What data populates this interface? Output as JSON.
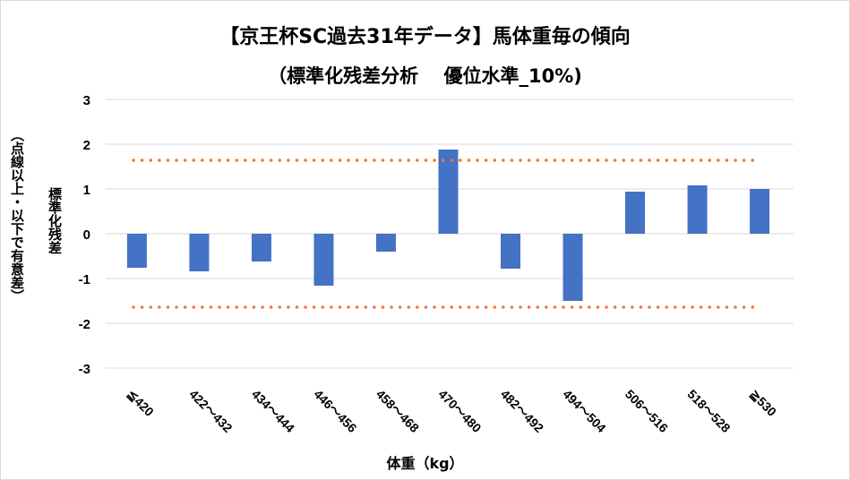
{
  "chart_data": {
    "type": "bar",
    "title": "【京王杯SC過去31年データ】馬体重毎の傾向",
    "subtitle": "（標準化残差分析　 優位水準_10%)",
    "xlabel": "体重（kg）",
    "ylabel": "標準化残差",
    "ylabel2": "（点線以上・以下で有意差）",
    "categories": [
      "≦420",
      "422～432",
      "434～444",
      "446～456",
      "458～468",
      "470～480",
      "482～492",
      "494～504",
      "506～516",
      "518～528",
      "≧530"
    ],
    "values": [
      -0.76,
      -0.84,
      -0.62,
      -1.16,
      -0.4,
      1.88,
      -0.78,
      -1.5,
      0.94,
      1.08,
      1.0
    ],
    "ylim": [
      -3,
      3
    ],
    "yticks": [
      3,
      2,
      1,
      0,
      -1,
      -2,
      -3
    ],
    "threshold_lines": [
      1.64,
      -1.64
    ],
    "grid": true,
    "bar_color": "#4472C4",
    "threshold_color": "#ED7D31"
  }
}
